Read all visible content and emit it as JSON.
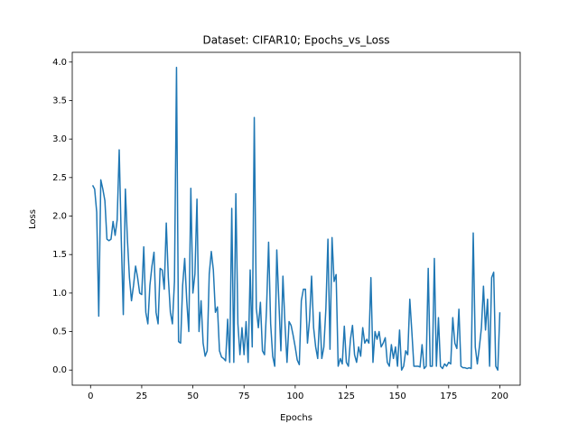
{
  "chart_data": {
    "type": "line",
    "title": "Dataset: CIFAR10; Epochs_vs_Loss",
    "x_label": "Epochs",
    "y_label": "Loss",
    "x": [
      1,
      2,
      3,
      4,
      5,
      6,
      7,
      8,
      9,
      10,
      11,
      12,
      13,
      14,
      15,
      16,
      17,
      18,
      19,
      20,
      21,
      22,
      23,
      24,
      25,
      26,
      27,
      28,
      29,
      30,
      31,
      32,
      33,
      34,
      35,
      36,
      37,
      38,
      39,
      40,
      41,
      42,
      43,
      44,
      45,
      46,
      47,
      48,
      49,
      50,
      51,
      52,
      53,
      54,
      55,
      56,
      57,
      58,
      59,
      60,
      61,
      62,
      63,
      64,
      65,
      66,
      67,
      68,
      69,
      70,
      71,
      72,
      73,
      74,
      75,
      76,
      77,
      78,
      79,
      80,
      81,
      82,
      83,
      84,
      85,
      86,
      87,
      88,
      89,
      90,
      91,
      92,
      93,
      94,
      95,
      96,
      97,
      98,
      99,
      100,
      101,
      102,
      103,
      104,
      105,
      106,
      107,
      108,
      109,
      110,
      111,
      112,
      113,
      114,
      115,
      116,
      117,
      118,
      119,
      120,
      121,
      122,
      123,
      124,
      125,
      126,
      127,
      128,
      129,
      130,
      131,
      132,
      133,
      134,
      135,
      136,
      137,
      138,
      139,
      140,
      141,
      142,
      143,
      144,
      145,
      146,
      147,
      148,
      149,
      150,
      151,
      152,
      153,
      154,
      155,
      156,
      157,
      158,
      159,
      160,
      161,
      162,
      163,
      164,
      165,
      166,
      167,
      168,
      169,
      170,
      171,
      172,
      173,
      174,
      175,
      176,
      177,
      178,
      179,
      180,
      181,
      182,
      183,
      184,
      185,
      186,
      187,
      188,
      189,
      190,
      191,
      192,
      193,
      194,
      195,
      196,
      197,
      198,
      199,
      200
    ],
    "series": [
      {
        "name": "Loss",
        "color": "#1f77b4",
        "values": [
          2.4,
          2.35,
          2.05,
          0.7,
          2.47,
          2.35,
          2.2,
          1.7,
          1.68,
          1.7,
          1.93,
          1.75,
          1.95,
          2.86,
          1.7,
          0.72,
          2.35,
          1.7,
          1.2,
          0.9,
          1.1,
          1.35,
          1.2,
          1.0,
          0.98,
          1.6,
          0.75,
          0.6,
          1.1,
          1.35,
          1.53,
          0.75,
          0.6,
          1.32,
          1.3,
          1.05,
          1.91,
          1.2,
          0.75,
          0.6,
          1.15,
          3.93,
          0.37,
          0.35,
          1.1,
          1.45,
          0.9,
          0.5,
          2.36,
          1.0,
          1.25,
          2.22,
          0.5,
          0.9,
          0.35,
          0.18,
          0.25,
          1.25,
          1.54,
          1.3,
          0.75,
          0.82,
          0.25,
          0.17,
          0.15,
          0.12,
          0.66,
          0.1,
          2.1,
          0.1,
          2.29,
          0.6,
          0.2,
          0.55,
          0.2,
          0.63,
          0.1,
          1.3,
          0.3,
          3.28,
          0.8,
          0.55,
          0.88,
          0.25,
          0.2,
          0.8,
          1.66,
          0.6,
          0.18,
          0.05,
          1.56,
          0.9,
          0.25,
          1.22,
          0.6,
          0.1,
          0.63,
          0.58,
          0.45,
          0.3,
          0.13,
          0.07,
          0.9,
          1.05,
          1.05,
          0.35,
          0.65,
          1.22,
          0.55,
          0.3,
          0.15,
          0.75,
          0.15,
          0.3,
          0.8,
          1.7,
          0.27,
          1.72,
          1.15,
          1.24,
          0.05,
          0.15,
          0.08,
          0.57,
          0.1,
          0.05,
          0.4,
          0.58,
          0.2,
          0.1,
          0.3,
          0.18,
          0.55,
          0.35,
          0.4,
          0.35,
          1.2,
          0.1,
          0.5,
          0.4,
          0.5,
          0.3,
          0.35,
          0.42,
          0.1,
          0.05,
          0.33,
          0.15,
          0.3,
          0.05,
          0.52,
          0.0,
          0.05,
          0.25,
          0.2,
          0.92,
          0.5,
          0.05,
          0.05,
          0.05,
          0.04,
          0.33,
          0.02,
          0.05,
          1.32,
          0.05,
          0.05,
          1.45,
          0.05,
          0.68,
          0.05,
          0.02,
          0.08,
          0.05,
          0.1,
          0.08,
          0.68,
          0.35,
          0.28,
          0.79,
          0.05,
          0.03,
          0.03,
          0.02,
          0.03,
          0.02,
          1.78,
          0.3,
          0.08,
          0.3,
          0.55,
          1.09,
          0.52,
          0.92,
          0.05,
          1.2,
          1.27,
          0.05,
          0.0,
          0.75
        ]
      }
    ],
    "xlim": [
      -8.95,
      209.95
    ],
    "xticks": [
      0,
      25,
      50,
      75,
      100,
      125,
      150,
      175,
      200
    ],
    "ylim": [
      -0.1965,
      4.1265
    ],
    "yticks": [
      {
        "value": 0,
        "label": "0.0"
      },
      0.5,
      {
        "value": 1,
        "label": "1.0"
      },
      1.5,
      {
        "value": 2,
        "label": "2.0"
      },
      2.5,
      {
        "value": 3,
        "label": "3.0"
      },
      3.5,
      {
        "value": 4,
        "label": "4.0"
      }
    ]
  }
}
